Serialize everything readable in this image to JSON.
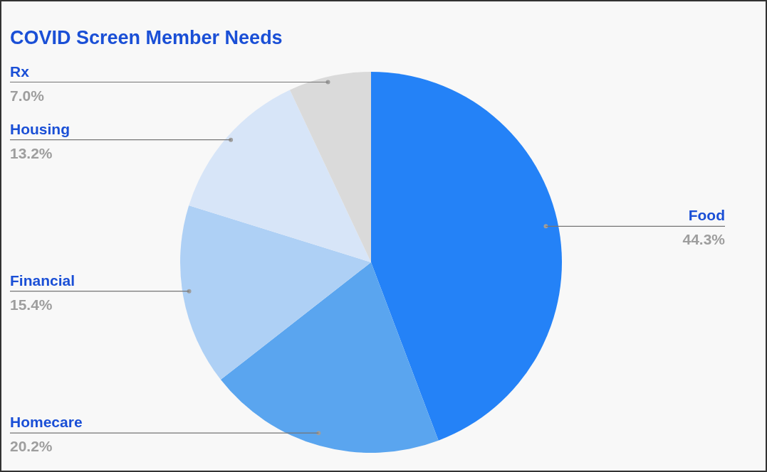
{
  "chart_data": {
    "type": "pie",
    "title": "COVID Screen Member Needs",
    "categories": [
      "Food",
      "Homecare",
      "Financial",
      "Housing",
      "Rx"
    ],
    "values": [
      44.3,
      20.2,
      15.4,
      13.2,
      7.0
    ],
    "value_labels": [
      "44.3%",
      "20.2%",
      "15.4%",
      "13.2%",
      "7.0%"
    ],
    "colors": [
      "#2482f7",
      "#5aa5ef",
      "#aed0f5",
      "#d7e5f8",
      "#dadada"
    ]
  }
}
